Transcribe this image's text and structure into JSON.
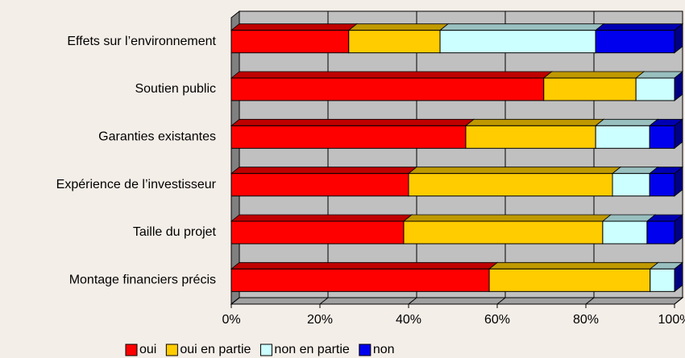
{
  "chart_data": {
    "type": "bar",
    "orientation": "horizontal",
    "stacked": true,
    "categories": [
      "Effets sur l’environnement",
      "Soutien public",
      "Garanties existantes",
      "Expérience de l’investisseur",
      "Taille du projet",
      "Montage financiers précis"
    ],
    "series": [
      {
        "name": "oui",
        "color": "#ff0000",
        "values": [
          26.5,
          70.5,
          52.9,
          40,
          38.9,
          58.2
        ]
      },
      {
        "name": "oui en partie",
        "color": "#ffcc00",
        "values": [
          20.6,
          20.8,
          29.3,
          46,
          44.9,
          36.3
        ]
      },
      {
        "name": "non en partie",
        "color": "#ccffff",
        "values": [
          35.1,
          8.7,
          12.2,
          8.4,
          10,
          5.5
        ]
      },
      {
        "name": "non",
        "color": "#0000ee",
        "values": [
          17.8,
          0,
          5.6,
          5.6,
          6.2,
          0
        ]
      }
    ],
    "xlim": [
      0,
      100
    ],
    "xticks": [
      {
        "value": 0,
        "label": "0%"
      },
      {
        "value": 20,
        "label": "20%"
      },
      {
        "value": 40,
        "label": "40%"
      },
      {
        "value": 60,
        "label": "60%"
      },
      {
        "value": 80,
        "label": "80%"
      },
      {
        "value": 100,
        "label": "100%"
      }
    ],
    "grid": true,
    "legend": "bottom"
  }
}
